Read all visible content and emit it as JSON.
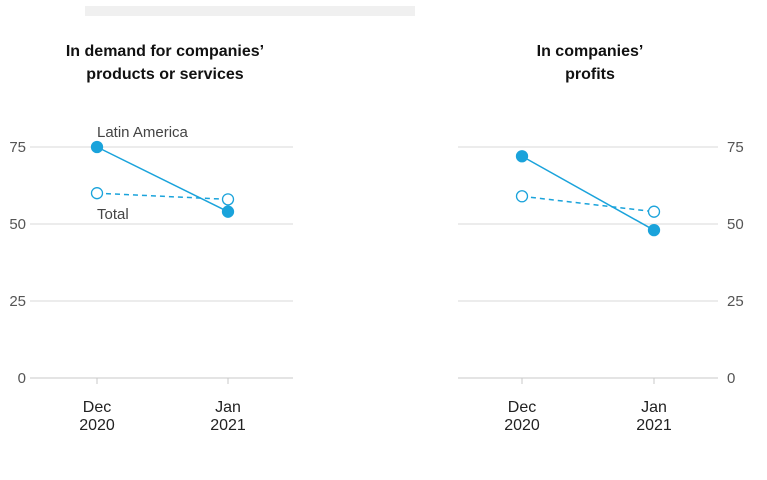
{
  "colors": {
    "series": "#1aa3db",
    "grid": "#d8d8d8",
    "axis": "#c8c8c8"
  },
  "chart_data": [
    {
      "type": "line",
      "title": [
        "In demand for companies’",
        "products or services"
      ],
      "categories": [
        [
          "Dec",
          "2020"
        ],
        [
          "Jan",
          "2021"
        ]
      ],
      "ylim": [
        0,
        75
      ],
      "yticks": [
        0,
        25,
        50,
        75
      ],
      "ytick_side": "left",
      "grid": true,
      "series": [
        {
          "name": "Latin America",
          "style": "solid",
          "marker": "filled",
          "values": [
            75,
            54
          ]
        },
        {
          "name": "Total",
          "style": "dashed",
          "marker": "open",
          "values": [
            60,
            58
          ]
        }
      ]
    },
    {
      "type": "line",
      "title": [
        "In companies’",
        "profits"
      ],
      "categories": [
        [
          "Dec",
          "2020"
        ],
        [
          "Jan",
          "2021"
        ]
      ],
      "ylim": [
        0,
        75
      ],
      "yticks": [
        0,
        25,
        50,
        75
      ],
      "ytick_side": "right",
      "grid": true,
      "series": [
        {
          "style": "solid",
          "marker": "filled",
          "values": [
            72,
            48
          ]
        },
        {
          "style": "dashed",
          "marker": "open",
          "values": [
            59,
            54
          ]
        }
      ]
    }
  ]
}
